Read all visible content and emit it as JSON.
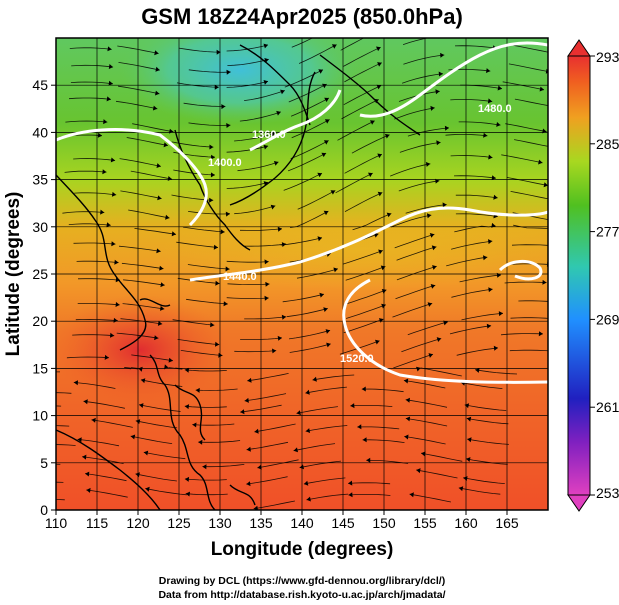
{
  "chart_data": {
    "type": "heatmap",
    "title": "GSM 18Z24Apr2025 (850.0hPa)",
    "xlabel": "Longitude (degrees)",
    "ylabel": "Latitude (degrees)",
    "xlim": [
      110,
      170
    ],
    "ylim": [
      0,
      50
    ],
    "x_ticks": [
      "110",
      "115",
      "120",
      "125",
      "130",
      "135",
      "140",
      "145",
      "150",
      "155",
      "160",
      "165"
    ],
    "y_ticks": [
      "0",
      "5",
      "10",
      "15",
      "20",
      "25",
      "30",
      "35",
      "40",
      "45"
    ],
    "grid": true,
    "colorbar": {
      "range": [
        253,
        293
      ],
      "ticks": [
        "293",
        "285",
        "277",
        "269",
        "261",
        "253"
      ],
      "placement": "right",
      "colors": [
        "#e040c0",
        "#2020c0",
        "#2090ff",
        "#30c8b0",
        "#50c020",
        "#a8d820",
        "#f0a020",
        "#f06020",
        "#e83030"
      ]
    },
    "contour_labels": [
      "1440.0",
      "1480.0",
      "1520.0",
      "1400.0",
      "1360.0"
    ],
    "credits": [
      "Drawing by DCL (https://www.gfd-dennou.org/library/dcl/)",
      "Data from http://database.rish.kyoto-u.ac.jp/arch/jmadata/"
    ],
    "temperature_field_K": [
      {
        "lon": 115,
        "lat": 45,
        "value": 279
      },
      {
        "lon": 130,
        "lat": 47,
        "value": 271
      },
      {
        "lon": 150,
        "lat": 45,
        "value": 279
      },
      {
        "lon": 115,
        "lat": 35,
        "value": 284
      },
      {
        "lon": 130,
        "lat": 35,
        "value": 281
      },
      {
        "lon": 160,
        "lat": 30,
        "value": 284
      },
      {
        "lon": 120,
        "lat": 20,
        "value": 292
      },
      {
        "lon": 145,
        "lat": 20,
        "value": 287
      },
      {
        "lon": 140,
        "lat": 5,
        "value": 288
      }
    ]
  }
}
